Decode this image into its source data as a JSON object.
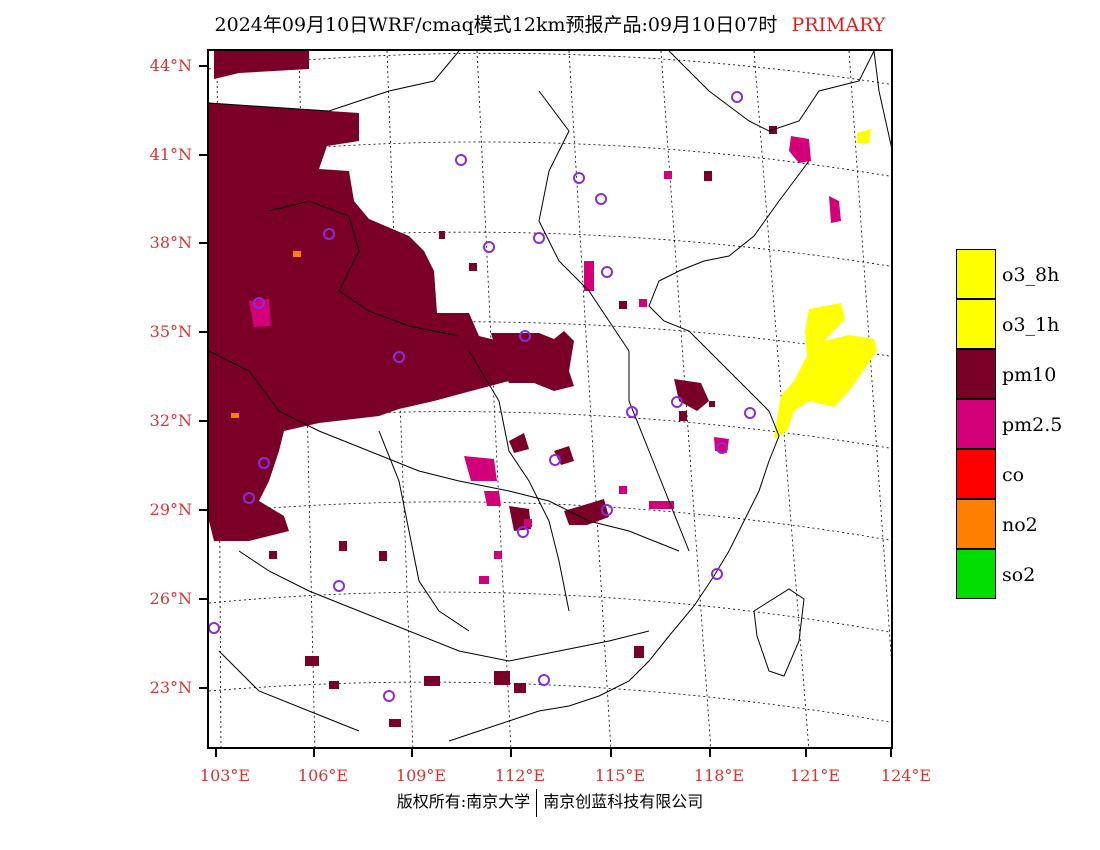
{
  "title": {
    "main": "2024年09月10日WRF/cmaq模式12km预报产品:09月10日07时",
    "tag": "PRIMARY"
  },
  "axes": {
    "lat_labels": [
      "44°N",
      "41°N",
      "38°N",
      "35°N",
      "32°N",
      "29°N",
      "26°N",
      "23°N"
    ],
    "lon_labels": [
      "103°E",
      "106°E",
      "109°E",
      "112°E",
      "115°E",
      "118°E",
      "121°E",
      "124°E"
    ]
  },
  "legend": [
    {
      "label": "o3_8h",
      "color": "#ffff00"
    },
    {
      "label": "o3_1h",
      "color": "#ffff00"
    },
    {
      "label": "pm10",
      "color": "#7a0028"
    },
    {
      "label": "pm2.5",
      "color": "#d3007a"
    },
    {
      "label": "co",
      "color": "#ff0000"
    },
    {
      "label": "no2",
      "color": "#ff7f00"
    },
    {
      "label": "so2",
      "color": "#00dd00"
    }
  ],
  "footer": {
    "left": "版权所有:南京大学",
    "right": "南京创蓝科技有限公司"
  },
  "colors": {
    "label_red": "#e03030",
    "pm10": "#7a0028",
    "pm25": "#d3007a",
    "o3": "#ffff00",
    "no2": "#ff7f00",
    "station_ring": "#8a2be2"
  }
}
